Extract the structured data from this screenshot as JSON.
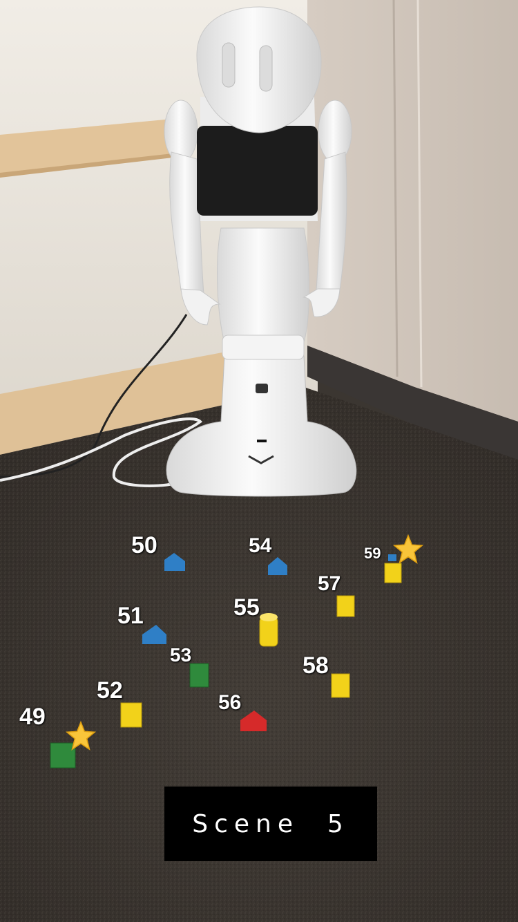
{
  "scene_label": "Scene  5",
  "objects": [
    {
      "id": "49",
      "color": "green",
      "shape": "cube",
      "starred": true
    },
    {
      "id": "50",
      "color": "blue",
      "shape": "triangular prism",
      "starred": false
    },
    {
      "id": "51",
      "color": "blue",
      "shape": "triangular prism",
      "starred": false
    },
    {
      "id": "52",
      "color": "yellow",
      "shape": "cube",
      "starred": false
    },
    {
      "id": "53",
      "color": "green",
      "shape": "cube",
      "starred": false
    },
    {
      "id": "54",
      "color": "blue",
      "shape": "triangular prism",
      "starred": false
    },
    {
      "id": "55",
      "color": "yellow",
      "shape": "cylinder",
      "starred": false
    },
    {
      "id": "56",
      "color": "red",
      "shape": "triangular prism",
      "starred": false
    },
    {
      "id": "57",
      "color": "yellow",
      "shape": "cube",
      "starred": false
    },
    {
      "id": "58",
      "color": "yellow",
      "shape": "cube",
      "starred": false
    },
    {
      "id": "59",
      "color": "yellow",
      "shape": "cube",
      "starred": true
    }
  ],
  "colors": {
    "blue": "#2f7fc6",
    "yellow": "#f2d21a",
    "green": "#2f8a3c",
    "red": "#d62a2a",
    "star": "#f9c53a",
    "carpet": "#3b3631",
    "wall": "#ece7df",
    "banner": "#000000"
  }
}
